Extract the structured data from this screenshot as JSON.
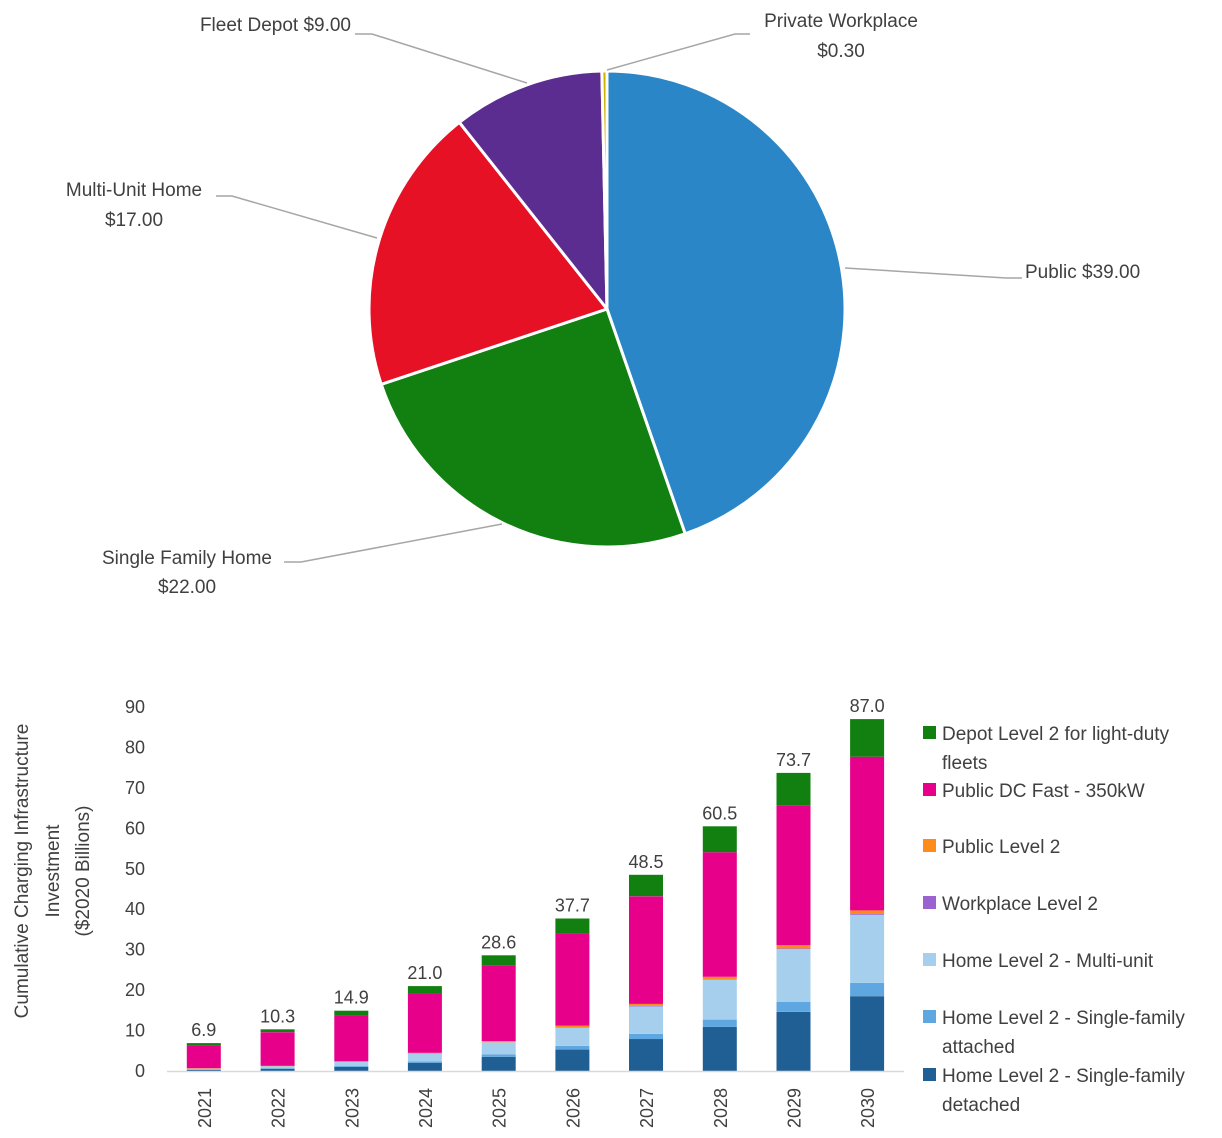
{
  "chart_data": [
    {
      "type": "pie",
      "slices": [
        {
          "label": "Public",
          "value": 39.0,
          "value_text": "$39.00",
          "color": "#2A86C7"
        },
        {
          "label": "Single Family Home",
          "value": 22.0,
          "value_text": "$22.00",
          "color": "#118010"
        },
        {
          "label": "Multi-Unit Home",
          "value": 17.0,
          "value_text": "$17.00",
          "color": "#E61125"
        },
        {
          "label": "Fleet Depot",
          "value": 9.0,
          "value_text": "$9.00",
          "color": "#5C2D91"
        },
        {
          "label": "Private Workplace",
          "value": 0.3,
          "value_text": "$0.30",
          "color": "#C9B200"
        }
      ],
      "labels": {
        "public": "Public $39.00",
        "single_family_1": "Single Family Home",
        "single_family_2": "$22.00",
        "multi_unit_1": "Multi-Unit Home",
        "multi_unit_2": "$17.00",
        "fleet": "Fleet Depot $9.00",
        "workplace_1": "Private Workplace",
        "workplace_2": "$0.30"
      }
    },
    {
      "type": "bar",
      "stacked": true,
      "categories": [
        "2021",
        "2022",
        "2023",
        "2024",
        "2025",
        "2026",
        "2027",
        "2028",
        "2029",
        "2030"
      ],
      "ylabel_lines": [
        "Cumulative Charging Infrastructure",
        "Investment",
        "($2020 Billions)"
      ],
      "ylim": [
        0,
        90
      ],
      "yticks": [
        0,
        10,
        20,
        30,
        40,
        50,
        60,
        70,
        80,
        90
      ],
      "totals": [
        "6.9",
        "10.3",
        "14.9",
        "21.0",
        "28.6",
        "37.7",
        "48.5",
        "60.5",
        "73.7",
        "87.0"
      ],
      "series": [
        {
          "name": "Home Level 2 - Single-family detached",
          "color": "#1F5F94",
          "values": [
            0.3,
            0.5,
            1.0,
            2.0,
            3.5,
            5.3,
            7.9,
            10.9,
            14.6,
            18.5
          ]
        },
        {
          "name": "Home Level 2 - Single-family attached",
          "color": "#5FA7E0",
          "values": [
            0.1,
            0.2,
            0.3,
            0.4,
            0.6,
            0.9,
            1.3,
            1.8,
            2.5,
            3.3
          ]
        },
        {
          "name": "Home Level 2 - Multi-unit",
          "color": "#A6CFEE",
          "values": [
            0.2,
            0.5,
            1.0,
            1.9,
            3.0,
            4.5,
            6.8,
            9.9,
            13.1,
            16.8
          ]
        },
        {
          "name": "Workplace Level 2",
          "color": "#9B63CF",
          "values": [
            0.0,
            0.0,
            0.0,
            0.0,
            0.0,
            0.1,
            0.1,
            0.1,
            0.1,
            0.2
          ]
        },
        {
          "name": "Public Level 2",
          "color": "#FF8C1A",
          "values": [
            0.1,
            0.1,
            0.1,
            0.2,
            0.3,
            0.4,
            0.5,
            0.6,
            0.8,
            0.9
          ]
        },
        {
          "name": "Public DC Fast - 350kW",
          "color": "#E6008A",
          "values": [
            5.7,
            8.3,
            11.3,
            14.7,
            18.6,
            22.7,
            26.6,
            30.8,
            34.6,
            38.0
          ]
        },
        {
          "name": "Depot Level 2 for light-duty fleets",
          "color": "#118010",
          "values": [
            0.5,
            0.7,
            1.2,
            1.8,
            2.6,
            3.8,
            5.3,
            6.4,
            8.0,
            9.3
          ]
        }
      ],
      "legend": {
        "placement": "right",
        "items": [
          {
            "color": "#118010",
            "lines": [
              "Depot Level 2 for light-duty",
              "fleets"
            ]
          },
          {
            "color": "#E6008A",
            "lines": [
              "Public DC Fast - 350kW"
            ]
          },
          {
            "color": "#FF8C1A",
            "lines": [
              "Public Level 2"
            ]
          },
          {
            "color": "#9B63CF",
            "lines": [
              "Workplace Level 2"
            ]
          },
          {
            "color": "#A6CFEE",
            "lines": [
              "Home Level 2 - Multi-unit"
            ]
          },
          {
            "color": "#5FA7E0",
            "lines": [
              "Home Level 2 - Single-family",
              "attached"
            ]
          },
          {
            "color": "#1F5F94",
            "lines": [
              "Home Level 2 - Single-family",
              "detached"
            ]
          }
        ]
      }
    }
  ]
}
